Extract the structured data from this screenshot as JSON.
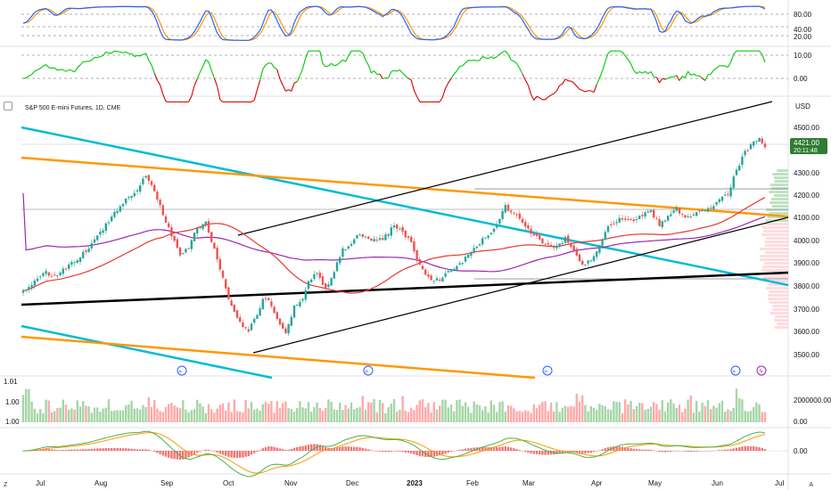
{
  "header": {
    "symbol_title": "S&P 500 E-mini Futures, 1D, CME",
    "currency": "USD"
  },
  "price_badge": {
    "price": "4421.00",
    "countdown": "20:11:48"
  },
  "colors": {
    "up": "#26a69a",
    "down": "#ef5350",
    "stoch_k": "#2962ff",
    "stoch_d": "#ff9800",
    "osc_up": "#00c800",
    "osc_down": "#d50000",
    "ma_fast": "#e53935",
    "ma_slow": "#9c27b0",
    "cyan": "#00bcd4",
    "orange": "#ff9800",
    "black": "#000000",
    "badge": "#2e7d32",
    "vol_up": "#a5d6a7",
    "vol_down": "#ffaaaa",
    "macd_line": "#4caf50",
    "macd_signal": "#ff9800",
    "macd_hist": "#ef5350"
  },
  "time_axis": [
    "Jul",
    "Aug",
    "Sep",
    "Oct",
    "Nov",
    "Dec",
    "2023",
    "Feb",
    "Mar",
    "Apr",
    "May",
    "Jun",
    "Jul"
  ],
  "stoch_axis": [
    "80.00",
    "40.00",
    "20.00"
  ],
  "osc_axis": [
    "10.00",
    "0.00"
  ],
  "price_axis": [
    "4500.00",
    "4300.00",
    "4200.00",
    "4100.00",
    "4000.00",
    "3900.00",
    "3800.00",
    "3700.00",
    "3600.00",
    "3500.00"
  ],
  "volume_axis": [
    "2000000.00",
    "0.00"
  ],
  "volume_left_labels": [
    "1.01",
    "1.00",
    "1.00"
  ],
  "macd_axis": [
    "0.00"
  ],
  "corner_labels": {
    "left": "Z",
    "right": "A"
  },
  "chart_data": {
    "type": "candlestick",
    "title": "S&P 500 E-mini Futures, 1D, CME",
    "ylabel": "USD",
    "ylim": [
      3430,
      4620
    ],
    "last_price": 4421,
    "price_path_anchors": [
      [
        0,
        3790
      ],
      [
        4,
        3830
      ],
      [
        8,
        3870
      ],
      [
        12,
        3860
      ],
      [
        16,
        3900
      ],
      [
        20,
        3940
      ],
      [
        25,
        4010
      ],
      [
        30,
        4100
      ],
      [
        35,
        4180
      ],
      [
        40,
        4240
      ],
      [
        43,
        4300
      ],
      [
        46,
        4230
      ],
      [
        49,
        4130
      ],
      [
        52,
        4030
      ],
      [
        55,
        3950
      ],
      [
        58,
        3980
      ],
      [
        61,
        4070
      ],
      [
        64,
        4090
      ],
      [
        67,
        3970
      ],
      [
        70,
        3850
      ],
      [
        73,
        3720
      ],
      [
        76,
        3650
      ],
      [
        79,
        3620
      ],
      [
        82,
        3680
      ],
      [
        84,
        3760
      ],
      [
        86,
        3750
      ],
      [
        89,
        3660
      ],
      [
        92,
        3600
      ],
      [
        95,
        3720
      ],
      [
        98,
        3760
      ],
      [
        100,
        3830
      ],
      [
        103,
        3870
      ],
      [
        106,
        3800
      ],
      [
        109,
        3880
      ],
      [
        112,
        3970
      ],
      [
        115,
        4000
      ],
      [
        118,
        4040
      ],
      [
        121,
        4020
      ],
      [
        124,
        4010
      ],
      [
        127,
        4030
      ],
      [
        130,
        4080
      ],
      [
        133,
        4050
      ],
      [
        136,
        4000
      ],
      [
        139,
        3900
      ],
      [
        142,
        3850
      ],
      [
        145,
        3840
      ],
      [
        148,
        3860
      ],
      [
        151,
        3890
      ],
      [
        154,
        3920
      ],
      [
        157,
        3960
      ],
      [
        160,
        4000
      ],
      [
        163,
        4040
      ],
      [
        166,
        4080
      ],
      [
        169,
        4160
      ],
      [
        172,
        4130
      ],
      [
        175,
        4090
      ],
      [
        178,
        4050
      ],
      [
        181,
        4010
      ],
      [
        184,
        3990
      ],
      [
        187,
        3980
      ],
      [
        190,
        4020
      ],
      [
        193,
        3970
      ],
      [
        196,
        3900
      ],
      [
        199,
        3930
      ],
      [
        202,
        3990
      ],
      [
        205,
        4080
      ],
      [
        208,
        4100
      ],
      [
        211,
        4110
      ],
      [
        214,
        4100
      ],
      [
        217,
        4120
      ],
      [
        220,
        4140
      ],
      [
        223,
        4080
      ],
      [
        226,
        4120
      ],
      [
        229,
        4150
      ],
      [
        232,
        4110
      ],
      [
        235,
        4130
      ],
      [
        238,
        4140
      ],
      [
        241,
        4150
      ],
      [
        244,
        4200
      ],
      [
        247,
        4220
      ],
      [
        250,
        4320
      ],
      [
        253,
        4400
      ],
      [
        256,
        4440
      ],
      [
        258,
        4460
      ],
      [
        260,
        4421
      ]
    ],
    "indicators": [
      "Stochastic %K/%D",
      "Oscillator",
      "Moving Average (fast)",
      "Moving Average (slow)",
      "Volume",
      "MACD"
    ]
  }
}
